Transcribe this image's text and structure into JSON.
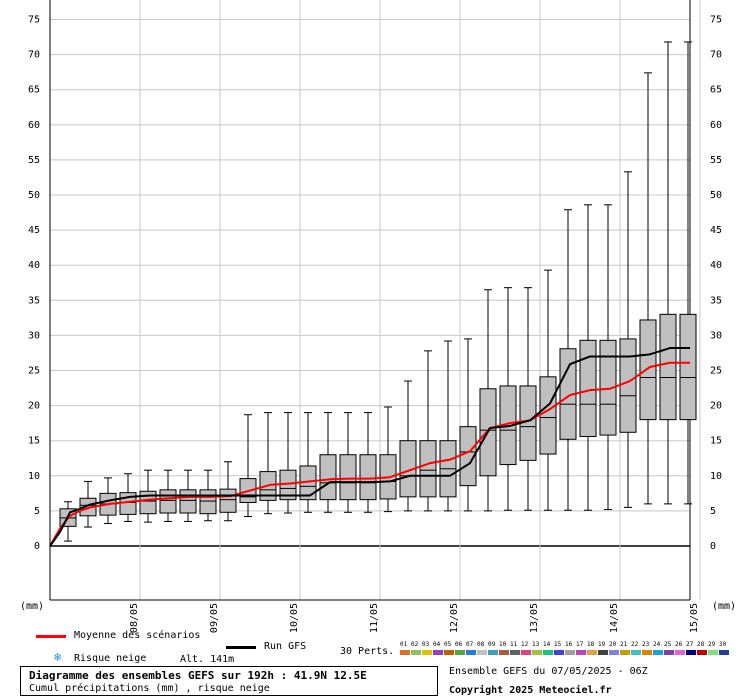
{
  "chart_data": {
    "type": "box",
    "title": "Diagramme des ensembles GEFS sur 192h : 41.9N 12.5E",
    "subtitle": "Cumul précipitations (mm) , risque neige",
    "ylabel_left": "(mm)",
    "ylabel_right": "(mm)",
    "ylim": [
      -10,
      77
    ],
    "yticks": [
      0,
      5,
      10,
      15,
      20,
      25,
      30,
      35,
      40,
      45,
      50,
      55,
      60,
      65,
      70,
      75
    ],
    "xlim": [
      0,
      32
    ],
    "date_labels": [
      {
        "x": 4,
        "label": "08/05"
      },
      {
        "x": 8,
        "label": "09/05"
      },
      {
        "x": 12,
        "label": "10/05"
      },
      {
        "x": 16,
        "label": "11/05"
      },
      {
        "x": 20,
        "label": "12/05"
      },
      {
        "x": 24,
        "label": "13/05"
      },
      {
        "x": 28,
        "label": "14/05"
      },
      {
        "x": 32,
        "label": "15/05"
      }
    ],
    "boxes": [
      {
        "x": 1,
        "min": 0.7,
        "q1": 2.8,
        "median": 4.0,
        "q3": 5.3,
        "max": 6.3
      },
      {
        "x": 2,
        "min": 2.7,
        "q1": 4.3,
        "median": 5.8,
        "q3": 6.8,
        "max": 9.2
      },
      {
        "x": 3,
        "min": 3.2,
        "q1": 4.4,
        "median": 6.0,
        "q3": 7.5,
        "max": 9.7
      },
      {
        "x": 4,
        "min": 3.5,
        "q1": 4.5,
        "median": 6.2,
        "q3": 7.6,
        "max": 10.3
      },
      {
        "x": 5,
        "min": 3.4,
        "q1": 4.6,
        "median": 6.4,
        "q3": 7.8,
        "max": 10.8
      },
      {
        "x": 6,
        "min": 3.5,
        "q1": 4.7,
        "median": 6.5,
        "q3": 8.0,
        "max": 10.8
      },
      {
        "x": 7,
        "min": 3.5,
        "q1": 4.7,
        "median": 6.5,
        "q3": 8.0,
        "max": 10.8
      },
      {
        "x": 8,
        "min": 3.6,
        "q1": 4.6,
        "median": 6.4,
        "q3": 8.0,
        "max": 10.8
      },
      {
        "x": 9,
        "min": 3.6,
        "q1": 4.8,
        "median": 6.6,
        "q3": 8.1,
        "max": 12.0
      },
      {
        "x": 10,
        "min": 4.2,
        "q1": 6.2,
        "median": 7.0,
        "q3": 9.6,
        "max": 18.7
      },
      {
        "x": 11,
        "min": 4.6,
        "q1": 6.5,
        "median": 8.0,
        "q3": 10.6,
        "max": 19.0
      },
      {
        "x": 12,
        "min": 4.7,
        "q1": 6.6,
        "median": 8.2,
        "q3": 10.8,
        "max": 19.0
      },
      {
        "x": 13,
        "min": 4.8,
        "q1": 6.6,
        "median": 8.5,
        "q3": 11.4,
        "max": 19.0
      },
      {
        "x": 14,
        "min": 4.8,
        "q1": 6.6,
        "median": 9.0,
        "q3": 13.0,
        "max": 19.0
      },
      {
        "x": 15,
        "min": 4.8,
        "q1": 6.6,
        "median": 9.0,
        "q3": 13.0,
        "max": 19.0
      },
      {
        "x": 16,
        "min": 4.8,
        "q1": 6.6,
        "median": 9.0,
        "q3": 13.0,
        "max": 19.0
      },
      {
        "x": 17,
        "min": 4.9,
        "q1": 6.7,
        "median": 9.2,
        "q3": 13.0,
        "max": 19.8
      },
      {
        "x": 18,
        "min": 5.0,
        "q1": 7.0,
        "median": 10.0,
        "q3": 15.0,
        "max": 23.5
      },
      {
        "x": 19,
        "min": 5.0,
        "q1": 7.0,
        "median": 10.8,
        "q3": 15.0,
        "max": 27.8
      },
      {
        "x": 20,
        "min": 5.0,
        "q1": 7.0,
        "median": 11.0,
        "q3": 15.0,
        "max": 29.2
      },
      {
        "x": 21,
        "min": 5.0,
        "q1": 8.6,
        "median": 13.4,
        "q3": 17.0,
        "max": 29.5
      },
      {
        "x": 22,
        "min": 5.0,
        "q1": 10.0,
        "median": 16.5,
        "q3": 22.4,
        "max": 36.5
      },
      {
        "x": 23,
        "min": 5.1,
        "q1": 11.6,
        "median": 16.5,
        "q3": 22.8,
        "max": 36.8
      },
      {
        "x": 24,
        "min": 5.1,
        "q1": 12.2,
        "median": 17.0,
        "q3": 22.8,
        "max": 36.8
      },
      {
        "x": 25,
        "min": 5.1,
        "q1": 13.1,
        "median": 18.3,
        "q3": 24.1,
        "max": 39.3
      },
      {
        "x": 26,
        "min": 5.1,
        "q1": 15.2,
        "median": 20.2,
        "q3": 28.1,
        "max": 47.9
      },
      {
        "x": 27,
        "min": 5.1,
        "q1": 15.6,
        "median": 20.2,
        "q3": 29.3,
        "max": 48.6
      },
      {
        "x": 28,
        "min": 5.2,
        "q1": 15.8,
        "median": 20.2,
        "q3": 29.3,
        "max": 48.6
      },
      {
        "x": 29,
        "min": 5.5,
        "q1": 16.2,
        "median": 21.4,
        "q3": 29.5,
        "max": 53.3
      },
      {
        "x": 30,
        "min": 6.0,
        "q1": 18.0,
        "median": 24.0,
        "q3": 32.2,
        "max": 67.4
      },
      {
        "x": 31,
        "min": 6.0,
        "q1": 18.0,
        "median": 24.0,
        "q3": 33.0,
        "max": 71.8
      },
      {
        "x": 32,
        "min": 6.0,
        "q1": 18.0,
        "median": 24.0,
        "q3": 33.0,
        "max": 71.8
      }
    ],
    "series": [
      {
        "name": "Moyenne des scénarios",
        "color": "#ff0000",
        "points": [
          [
            0,
            0
          ],
          [
            0.5,
            2.5
          ],
          [
            1,
            4.3
          ],
          [
            1.5,
            5.0
          ],
          [
            2,
            5.5
          ],
          [
            3,
            6.0
          ],
          [
            4,
            6.3
          ],
          [
            5,
            6.6
          ],
          [
            6,
            6.8
          ],
          [
            7,
            7.0
          ],
          [
            8,
            7.0
          ],
          [
            9,
            7.1
          ],
          [
            10,
            7.9
          ],
          [
            11,
            8.7
          ],
          [
            12,
            8.9
          ],
          [
            13,
            9.2
          ],
          [
            14,
            9.5
          ],
          [
            15,
            9.6
          ],
          [
            16,
            9.6
          ],
          [
            17,
            9.8
          ],
          [
            18,
            10.8
          ],
          [
            19,
            11.8
          ],
          [
            20,
            12.3
          ],
          [
            21,
            13.5
          ],
          [
            22,
            16.8
          ],
          [
            23,
            17.5
          ],
          [
            24,
            17.9
          ],
          [
            25,
            19.5
          ],
          [
            26,
            21.5
          ],
          [
            27,
            22.2
          ],
          [
            28,
            22.4
          ],
          [
            29,
            23.5
          ],
          [
            30,
            25.5
          ],
          [
            31,
            26.1
          ],
          [
            32,
            26.1
          ]
        ]
      },
      {
        "name": "Run GFS",
        "color": "#000000",
        "points": [
          [
            0,
            0
          ],
          [
            0.5,
            2.0
          ],
          [
            1,
            4.8
          ],
          [
            1.5,
            5.3
          ],
          [
            2,
            5.9
          ],
          [
            3,
            6.5
          ],
          [
            4,
            7.0
          ],
          [
            5,
            7.2
          ],
          [
            6,
            7.2
          ],
          [
            7,
            7.2
          ],
          [
            8,
            7.2
          ],
          [
            9,
            7.2
          ],
          [
            10,
            7.2
          ],
          [
            11,
            7.2
          ],
          [
            12,
            7.2
          ],
          [
            13,
            7.2
          ],
          [
            14,
            9.1
          ],
          [
            15,
            9.1
          ],
          [
            16,
            9.1
          ],
          [
            17,
            9.2
          ],
          [
            18,
            10.0
          ],
          [
            19,
            10.0
          ],
          [
            20,
            10.0
          ],
          [
            21,
            11.8
          ],
          [
            22,
            16.8
          ],
          [
            23,
            17.1
          ],
          [
            24,
            17.9
          ],
          [
            25,
            20.3
          ],
          [
            26,
            25.9
          ],
          [
            27,
            27.0
          ],
          [
            28,
            27.0
          ],
          [
            29,
            27.0
          ],
          [
            30,
            27.3
          ],
          [
            31,
            28.2
          ],
          [
            32,
            28.2
          ]
        ]
      }
    ],
    "legend": {
      "mean_label": "Moyenne des scénarios",
      "run_label": "Run GFS",
      "snow_label": "Risque neige",
      "altitude": "Alt. 141m",
      "perts_label": "30 Perts.",
      "perturbations": [
        "01",
        "02",
        "03",
        "04",
        "05",
        "06",
        "07",
        "08",
        "09",
        "10",
        "11",
        "12",
        "13",
        "14",
        "15",
        "16",
        "17",
        "18",
        "19",
        "20",
        "21",
        "22",
        "23",
        "24",
        "25",
        "26",
        "27",
        "28",
        "29",
        "30"
      ],
      "pert_colors": [
        "#e07020",
        "#90c060",
        "#e0c000",
        "#9040c0",
        "#c06000",
        "#60a040",
        "#2080e0",
        "#c0c0c0",
        "#40a0c0",
        "#a06040",
        "#606060",
        "#e04080",
        "#a0c040",
        "#20c080",
        "#4040e0",
        "#a0a0a0",
        "#c040c0",
        "#e0a040",
        "#404040",
        "#8080e0",
        "#c0a000",
        "#40c0c0",
        "#e08000",
        "#20a0e0",
        "#8040a0",
        "#e060e0",
        "#000080",
        "#c00000",
        "#80e080",
        "#2040a0"
      ]
    },
    "info": {
      "ensemble": "Ensemble GEFS du 07/05/2025 - 06Z",
      "copyright": "Copyright 2025 Meteociel.fr"
    }
  }
}
